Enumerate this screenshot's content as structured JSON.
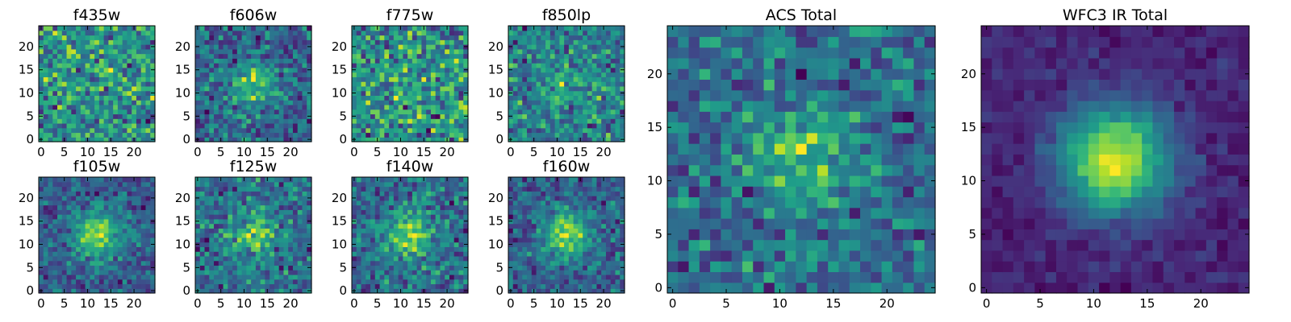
{
  "chart_data": [
    {
      "type": "heatmap",
      "title": "f435w",
      "grid": [
        25,
        25
      ],
      "xlim": [
        -0.5,
        24.5
      ],
      "ylim": [
        -0.5,
        24.5
      ],
      "xticks": [
        0,
        5,
        10,
        15,
        20
      ],
      "yticks": [
        0,
        5,
        10,
        15,
        20
      ],
      "colormap": "viridis",
      "signal": 0.05,
      "seed": 11
    },
    {
      "type": "heatmap",
      "title": "f606w",
      "grid": [
        25,
        25
      ],
      "xlim": [
        -0.5,
        24.5
      ],
      "ylim": [
        -0.5,
        24.5
      ],
      "xticks": [
        0,
        5,
        10,
        15,
        20
      ],
      "yticks": [
        0,
        5,
        10,
        15,
        20
      ],
      "colormap": "viridis",
      "signal": 0.3,
      "seed": 23
    },
    {
      "type": "heatmap",
      "title": "f775w",
      "grid": [
        25,
        25
      ],
      "xlim": [
        -0.5,
        24.5
      ],
      "ylim": [
        -0.5,
        24.5
      ],
      "xticks": [
        0,
        5,
        10,
        15,
        20
      ],
      "yticks": [
        0,
        5,
        10,
        15,
        20
      ],
      "colormap": "viridis",
      "signal": 0.05,
      "seed": 37
    },
    {
      "type": "heatmap",
      "title": "f850lp",
      "grid": [
        25,
        25
      ],
      "xlim": [
        -0.5,
        24.5
      ],
      "ylim": [
        -0.5,
        24.5
      ],
      "xticks": [
        0,
        5,
        10,
        15,
        20
      ],
      "yticks": [
        0,
        5,
        10,
        15,
        20
      ],
      "colormap": "viridis",
      "signal": 0.15,
      "seed": 41
    },
    {
      "type": "heatmap",
      "title": "f105w",
      "grid": [
        25,
        25
      ],
      "xlim": [
        -0.5,
        24.5
      ],
      "ylim": [
        -0.5,
        24.5
      ],
      "xticks": [
        0,
        5,
        10,
        15,
        20
      ],
      "yticks": [
        0,
        5,
        10,
        15,
        20
      ],
      "colormap": "viridis",
      "signal": 0.45,
      "seed": 53
    },
    {
      "type": "heatmap",
      "title": "f125w",
      "grid": [
        25,
        25
      ],
      "xlim": [
        -0.5,
        24.5
      ],
      "ylim": [
        -0.5,
        24.5
      ],
      "xticks": [
        0,
        5,
        10,
        15,
        20
      ],
      "yticks": [
        0,
        5,
        10,
        15,
        20
      ],
      "colormap": "viridis",
      "signal": 0.3,
      "seed": 67
    },
    {
      "type": "heatmap",
      "title": "f140w",
      "grid": [
        25,
        25
      ],
      "xlim": [
        -0.5,
        24.5
      ],
      "ylim": [
        -0.5,
        24.5
      ],
      "xticks": [
        0,
        5,
        10,
        15,
        20
      ],
      "yticks": [
        0,
        5,
        10,
        15,
        20
      ],
      "colormap": "viridis",
      "signal": 0.35,
      "seed": 79
    },
    {
      "type": "heatmap",
      "title": "f160w",
      "grid": [
        25,
        25
      ],
      "xlim": [
        -0.5,
        24.5
      ],
      "ylim": [
        -0.5,
        24.5
      ],
      "xticks": [
        0,
        5,
        10,
        15,
        20
      ],
      "yticks": [
        0,
        5,
        10,
        15,
        20
      ],
      "colormap": "viridis",
      "signal": 0.45,
      "seed": 83
    },
    {
      "type": "heatmap",
      "title": "ACS Total",
      "grid": [
        25,
        25
      ],
      "xlim": [
        -0.5,
        24.5
      ],
      "ylim": [
        -0.5,
        24.5
      ],
      "xticks": [
        0,
        5,
        10,
        15,
        20
      ],
      "yticks": [
        0,
        5,
        10,
        15,
        20
      ],
      "colormap": "viridis",
      "signal": 0.3,
      "seed": 97
    },
    {
      "type": "heatmap",
      "title": "WFC3 IR Total",
      "grid": [
        25,
        25
      ],
      "xlim": [
        -0.5,
        24.5
      ],
      "ylim": [
        -0.5,
        24.5
      ],
      "xticks": [
        0,
        5,
        10,
        15,
        20
      ],
      "yticks": [
        0,
        5,
        10,
        15,
        20
      ],
      "colormap": "viridis",
      "signal": 0.75,
      "seed": 101
    }
  ]
}
